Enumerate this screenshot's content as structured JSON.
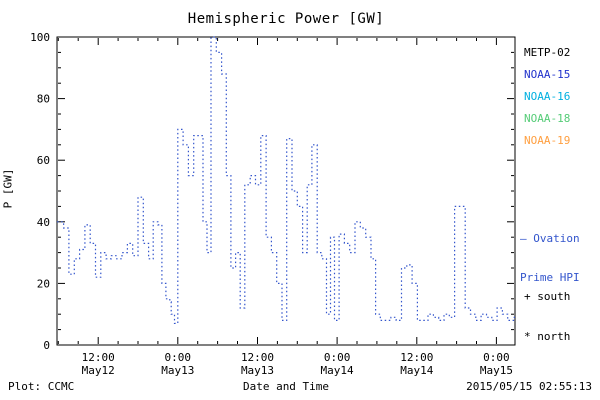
{
  "title": "Hemispheric Power [GW]",
  "ylabel": "P [GW]",
  "footer": {
    "left": "Plot: CCMC",
    "xlabel": "Date and Time",
    "timestamp": "2015/05/15 02:55:13"
  },
  "legend": {
    "satellites": [
      {
        "label": "METP-02",
        "color": "#000000"
      },
      {
        "label": "NOAA-15",
        "color": "#2233cc"
      },
      {
        "label": "NOAA-16",
        "color": "#00b0e0"
      },
      {
        "label": "NOAA-18",
        "color": "#55cc77"
      },
      {
        "label": "NOAA-19",
        "color": "#ff9f40"
      }
    ],
    "series_note": {
      "line1": "— Ovation",
      "line2": "Prime HPI",
      "color": "#3355cc"
    },
    "markers": [
      {
        "label": "+ south"
      },
      {
        "label": "* north"
      }
    ]
  },
  "chart_data": {
    "type": "line",
    "style": "dotted-step",
    "title": "Hemispheric Power [GW]",
    "xlabel": "Date and Time",
    "ylabel": "P [GW]",
    "line_color": "#3355cc",
    "ylim": [
      0,
      100
    ],
    "y_ticks": [
      0,
      20,
      40,
      60,
      80,
      100
    ],
    "x_hours_range": [
      5.8,
      74.8
    ],
    "x_hours_epoch": "hours since 2015-05-12 00:00",
    "x_major_ticks": [
      {
        "hour": 12,
        "time": "12:00",
        "date": "May12"
      },
      {
        "hour": 24,
        "time": "0:00",
        "date": "May13"
      },
      {
        "hour": 36,
        "time": "12:00",
        "date": "May13"
      },
      {
        "hour": 48,
        "time": "0:00",
        "date": "May14"
      },
      {
        "hour": 60,
        "time": "12:00",
        "date": "May14"
      },
      {
        "hour": 72,
        "time": "0:00",
        "date": "May15"
      }
    ],
    "points": [
      [
        5.8,
        40
      ],
      [
        6.8,
        38
      ],
      [
        7.6,
        23
      ],
      [
        8.4,
        28
      ],
      [
        9.2,
        31
      ],
      [
        10,
        39
      ],
      [
        10.8,
        33
      ],
      [
        11.6,
        22
      ],
      [
        12.4,
        30
      ],
      [
        13.2,
        28
      ],
      [
        14,
        29
      ],
      [
        14.8,
        28
      ],
      [
        15.6,
        30
      ],
      [
        16.4,
        33
      ],
      [
        17.2,
        29
      ],
      [
        18,
        48
      ],
      [
        18.8,
        33
      ],
      [
        19.6,
        28
      ],
      [
        20.3,
        40
      ],
      [
        21,
        39
      ],
      [
        21.6,
        20
      ],
      [
        22.2,
        15
      ],
      [
        22.8,
        14
      ],
      [
        23,
        10
      ],
      [
        23.5,
        7
      ],
      [
        24,
        70
      ],
      [
        24.8,
        65
      ],
      [
        25.6,
        55
      ],
      [
        26.4,
        68
      ],
      [
        27.1,
        68
      ],
      [
        27.8,
        40
      ],
      [
        28.4,
        30
      ],
      [
        29,
        100
      ],
      [
        29.8,
        95
      ],
      [
        30.6,
        88
      ],
      [
        31.3,
        55
      ],
      [
        32,
        25
      ],
      [
        32.7,
        30
      ],
      [
        33.4,
        12
      ],
      [
        34.1,
        52
      ],
      [
        34.9,
        55
      ],
      [
        35.7,
        52
      ],
      [
        36.5,
        68
      ],
      [
        37.3,
        35
      ],
      [
        38.1,
        30
      ],
      [
        38.9,
        20
      ],
      [
        39.7,
        8
      ],
      [
        40.4,
        67
      ],
      [
        41.2,
        50
      ],
      [
        42,
        45
      ],
      [
        42.8,
        30
      ],
      [
        43.5,
        52
      ],
      [
        44.2,
        65
      ],
      [
        45,
        30
      ],
      [
        45.7,
        28
      ],
      [
        46.4,
        10
      ],
      [
        47,
        35
      ],
      [
        47.6,
        8
      ],
      [
        48.3,
        36
      ],
      [
        49.1,
        33
      ],
      [
        49.9,
        30
      ],
      [
        50.7,
        40
      ],
      [
        51.5,
        38
      ],
      [
        52.3,
        35
      ],
      [
        53.1,
        28
      ],
      [
        53.8,
        10
      ],
      [
        54.5,
        8
      ],
      [
        55.3,
        8
      ],
      [
        56.1,
        9
      ],
      [
        56.9,
        8
      ],
      [
        57.7,
        25
      ],
      [
        58.5,
        26
      ],
      [
        59.3,
        20
      ],
      [
        60.1,
        8
      ],
      [
        60.9,
        8
      ],
      [
        61.7,
        10
      ],
      [
        62.5,
        9
      ],
      [
        63.3,
        8
      ],
      [
        64.1,
        10
      ],
      [
        64.9,
        9
      ],
      [
        65.7,
        45
      ],
      [
        66.5,
        45
      ],
      [
        67.3,
        12
      ],
      [
        68.1,
        10
      ],
      [
        68.9,
        8
      ],
      [
        69.7,
        10
      ],
      [
        70.5,
        9
      ],
      [
        71.3,
        8
      ],
      [
        72.1,
        12
      ],
      [
        72.9,
        10
      ],
      [
        73.7,
        8
      ],
      [
        74.7,
        9
      ]
    ]
  }
}
